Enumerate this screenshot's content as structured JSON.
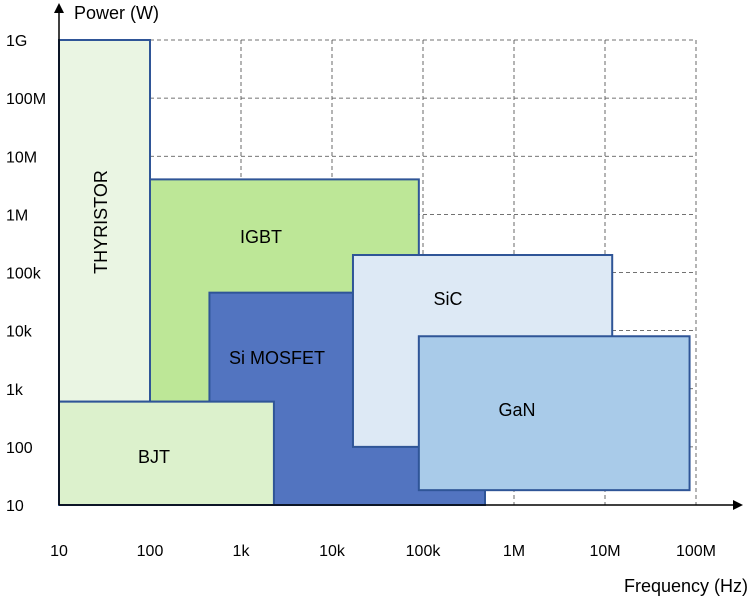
{
  "chart_data": {
    "type": "area",
    "title": "",
    "xlabel": "Frequency (Hz)",
    "ylabel": "Power (W)",
    "x_scale": "log",
    "y_scale": "log",
    "xlim": [
      10,
      100000000
    ],
    "ylim": [
      10,
      1000000000
    ],
    "grid": true,
    "x_ticks": [
      {
        "value": 10,
        "label": "10"
      },
      {
        "value": 100,
        "label": "100"
      },
      {
        "value": 1000,
        "label": "1k"
      },
      {
        "value": 10000,
        "label": "10k"
      },
      {
        "value": 100000,
        "label": "100k"
      },
      {
        "value": 1000000,
        "label": "1M"
      },
      {
        "value": 10000000,
        "label": "10M"
      },
      {
        "value": 100000000,
        "label": "100M"
      }
    ],
    "y_ticks": [
      {
        "value": 10,
        "label": "10"
      },
      {
        "value": 100,
        "label": "100"
      },
      {
        "value": 1000,
        "label": "1k"
      },
      {
        "value": 10000,
        "label": "10k"
      },
      {
        "value": 100000,
        "label": "100k"
      },
      {
        "value": 1000000,
        "label": "1M"
      },
      {
        "value": 10000000,
        "label": "10M"
      },
      {
        "value": 100000000,
        "label": "100M"
      },
      {
        "value": 1000000000,
        "label": "1G"
      }
    ],
    "regions": [
      {
        "name": "THYRISTOR",
        "x_range": [
          10,
          100
        ],
        "y_range": [
          600,
          1000000000
        ],
        "color": "#eaf5e3",
        "vertical": true
      },
      {
        "name": "IGBT",
        "x_range": [
          100,
          90000
        ],
        "y_range": [
          600,
          4000000
        ],
        "color": "#bde797",
        "vertical": false
      },
      {
        "name": "Si MOSFET",
        "x_range": [
          450,
          480000
        ],
        "y_range": [
          10,
          45000
        ],
        "color": "#5274c0",
        "vertical": false
      },
      {
        "name": "BJT",
        "x_range": [
          10,
          2300
        ],
        "y_range": [
          10,
          600
        ],
        "color": "#dcf1cc",
        "vertical": false
      },
      {
        "name": "SiC",
        "x_range": [
          17000,
          12000000
        ],
        "y_range": [
          100,
          200000
        ],
        "color": "#dde9f5",
        "vertical": false
      },
      {
        "name": "GaN",
        "x_range": [
          90000,
          85000000
        ],
        "y_range": [
          18,
          8000
        ],
        "color": "#a9cbe9",
        "vertical": false
      }
    ]
  }
}
